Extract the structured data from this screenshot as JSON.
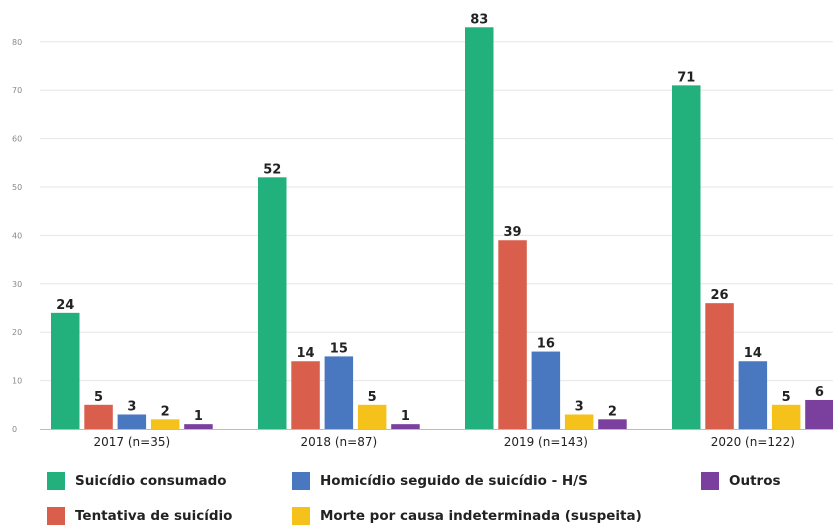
{
  "chart_data": {
    "type": "bar",
    "title": "",
    "xlabel": "",
    "ylabel": "",
    "ylim": [
      0,
      85
    ],
    "yticks": [
      0,
      10,
      20,
      30,
      40,
      50,
      60,
      70,
      80
    ],
    "grid": true,
    "legend_position": "bottom",
    "categories": [
      "2017 (n=35)",
      "2018 (n=87)",
      "2019 (n=143)",
      "2020 (n=122)"
    ],
    "series": [
      {
        "name": "Suicídio consumado",
        "color": "#22b07d",
        "values": [
          24,
          52,
          83,
          71
        ]
      },
      {
        "name": "Tentativa de suicídio",
        "color": "#d95f4c",
        "values": [
          5,
          14,
          39,
          26
        ]
      },
      {
        "name": "Homicídio seguido de suicídio - H/S",
        "color": "#4a78c0",
        "values": [
          3,
          15,
          16,
          14
        ]
      },
      {
        "name": "Morte por causa indeterminada (suspeita)",
        "color": "#f4c21b",
        "values": [
          2,
          5,
          3,
          5
        ]
      },
      {
        "name": "Outros",
        "color": "#7b3f9e",
        "values": [
          1,
          1,
          2,
          6
        ]
      }
    ]
  }
}
